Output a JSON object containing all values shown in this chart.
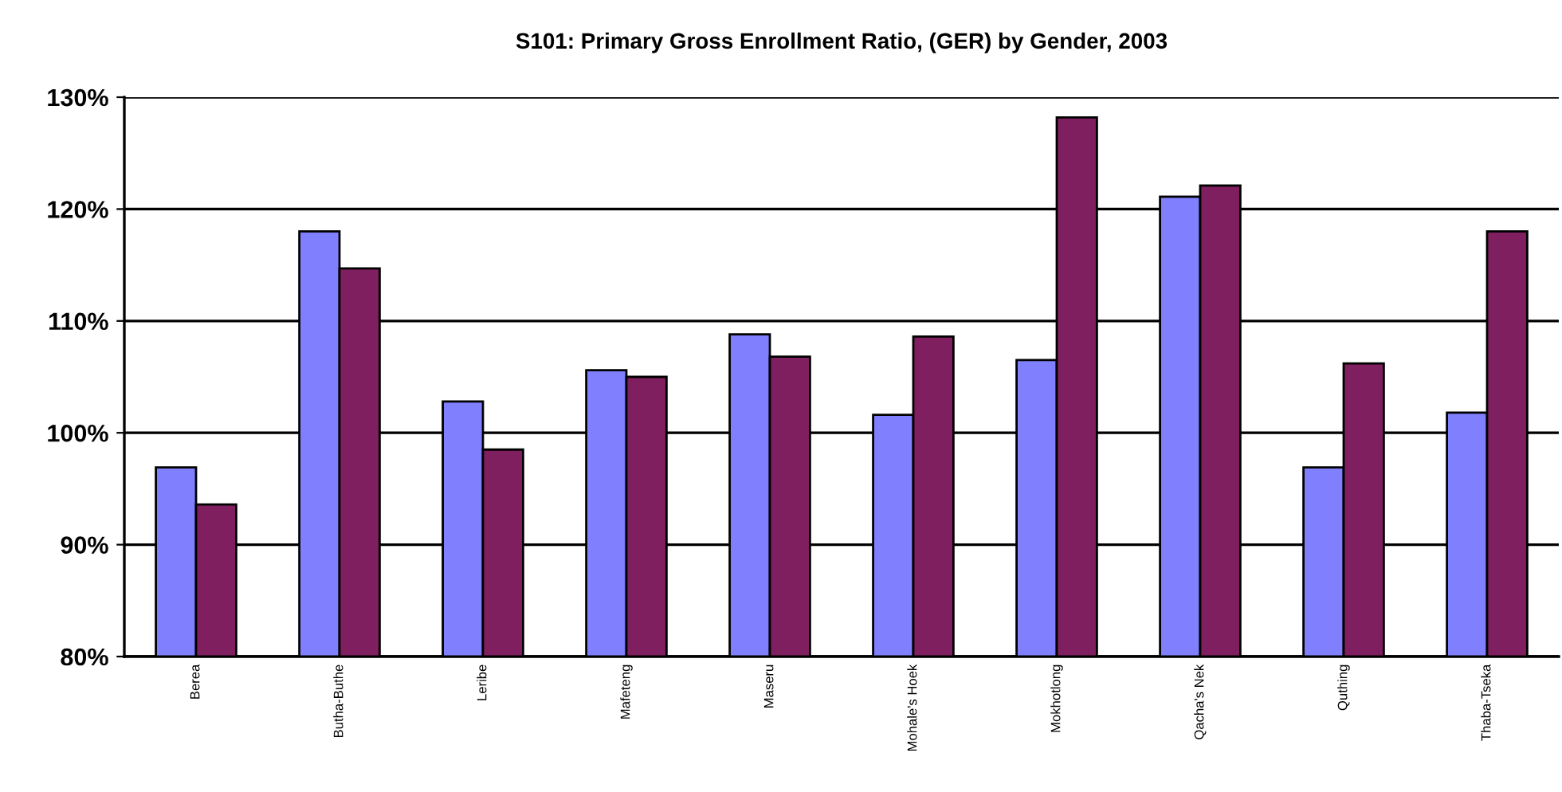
{
  "chart_data": {
    "type": "bar",
    "title": "S101: Primary Gross Enrollment Ratio, (GER) by Gender, 2003",
    "categories": [
      "Berea",
      "Butha-Buthe",
      "Leribe",
      "Mafeteng",
      "Maseru",
      "Mohale's Hoek",
      "Mokhotlong",
      "Qacha's Nek",
      "Quthing",
      "Thaba-Tseka"
    ],
    "series": [
      {
        "color": "#8080ff",
        "values": [
          96.9,
          118.0,
          102.8,
          105.6,
          108.8,
          101.6,
          106.5,
          121.1,
          96.9,
          101.8
        ]
      },
      {
        "color": "#7f1f5f",
        "values": [
          93.6,
          114.7,
          98.5,
          105.0,
          106.8,
          108.6,
          128.2,
          122.1,
          106.2,
          118.0
        ]
      }
    ],
    "ylim": [
      80,
      130
    ],
    "yticks": [
      {
        "value": 80,
        "label": "80%"
      },
      {
        "value": 90,
        "label": "90%"
      },
      {
        "value": 100,
        "label": "100%"
      },
      {
        "value": 110,
        "label": "110%"
      },
      {
        "value": 120,
        "label": "120%"
      },
      {
        "value": 130,
        "label": "130%"
      }
    ],
    "grid": "y"
  }
}
